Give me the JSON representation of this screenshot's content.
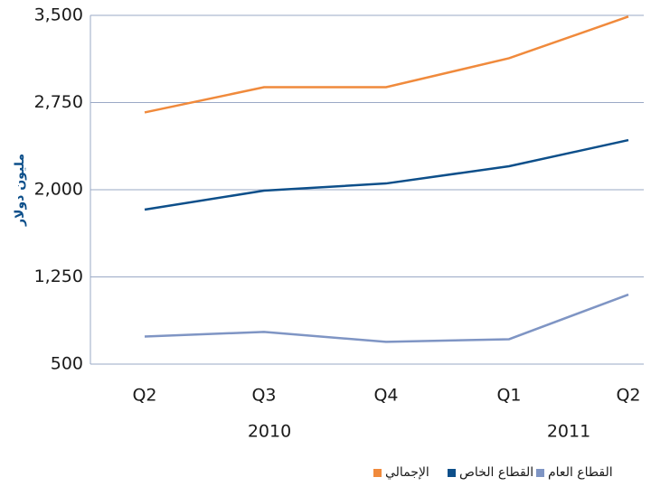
{
  "chart_data": {
    "type": "line",
    "y_label": "مليون دولار",
    "categories": [
      "Q2",
      "Q3",
      "Q4",
      "Q1",
      "Q2"
    ],
    "years": [
      "2010",
      "2011"
    ],
    "series": [
      {
        "name": "الإجمالي",
        "color": "#f08a3c",
        "values": [
          2665,
          2882,
          2882,
          3131,
          3490
        ]
      },
      {
        "name": "القطاع الخاص",
        "color": "#0d4f8a",
        "values": [
          1829,
          1992,
          2054,
          2202,
          2427
        ]
      },
      {
        "name": "القطاع العام",
        "color": "#7f95c4",
        "values": [
          737,
          777,
          691,
          714,
          1098
        ]
      }
    ],
    "ylim": [
      500,
      3500
    ],
    "yticks": [
      500,
      {
        "value": 1250,
        "label": "1,250"
      },
      {
        "value": 2000,
        "label": "2,000"
      },
      {
        "value": 2750,
        "label": "2,750"
      },
      {
        "value": 3500,
        "label": "3,500"
      }
    ],
    "grid": true
  }
}
